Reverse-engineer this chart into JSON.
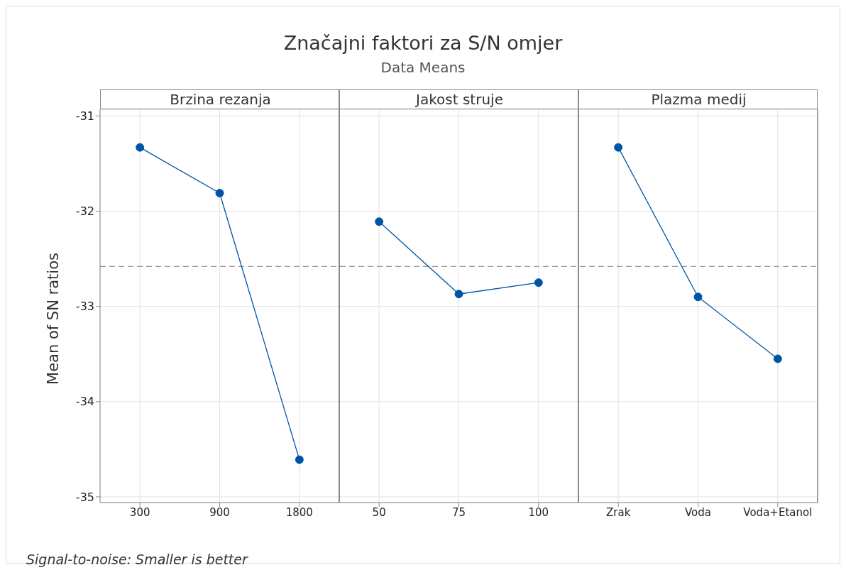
{
  "chart_data": {
    "type": "line",
    "title": "Značajni faktori za S/N omjer",
    "subtitle": "Data Means",
    "ylabel": "Mean of SN ratios",
    "annotations": [
      "Brzina rezanja",
      "Jakost struje",
      "Plazma medij",
      "Signal-to-noise: Smaller is better"
    ],
    "categories": [
      "300",
      "900",
      "1800",
      "50",
      "75",
      "100",
      "Zrak",
      "Voda",
      "Voda+Etanol"
    ],
    "series": [
      {
        "color": "#0054a6",
        "values": [
          -31.33,
          -31.81,
          -34.61,
          null,
          null,
          null,
          null,
          null,
          null
        ]
      },
      {
        "color": "#0054a6",
        "values": [
          null,
          null,
          null,
          -32.11,
          -32.87,
          -32.75,
          null,
          null,
          null
        ]
      },
      {
        "color": "#0054a6",
        "values": [
          null,
          null,
          null,
          null,
          null,
          null,
          -31.33,
          -32.9,
          -33.55
        ]
      }
    ],
    "ylim": [
      -35.06,
      -30.93
    ],
    "yticks": [
      -31,
      -32,
      -33,
      -34,
      -35
    ],
    "grid": true,
    "marker": "circle",
    "ref_lines": [
      {
        "axis": "y",
        "value": -32.58,
        "color": "#999999",
        "line_style": "dashed"
      }
    ]
  }
}
